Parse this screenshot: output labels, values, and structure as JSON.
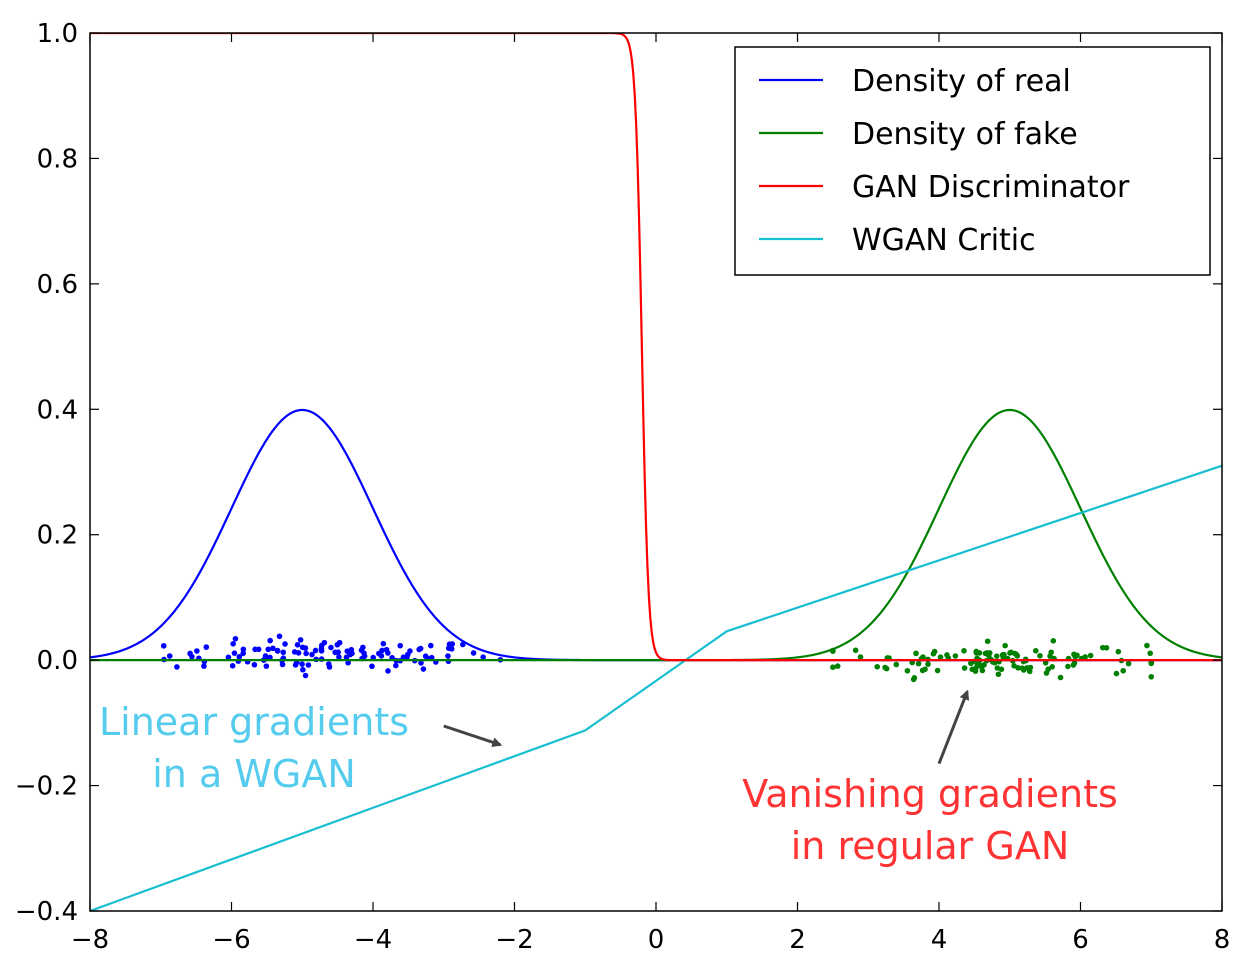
{
  "chart_data": {
    "type": "line",
    "title": "",
    "xlabel": "",
    "ylabel": "",
    "xlim": [
      -8,
      8
    ],
    "ylim": [
      -0.4,
      1.0
    ],
    "x_ticks": [
      -8,
      -6,
      -4,
      -2,
      0,
      2,
      4,
      6,
      8
    ],
    "x_tick_labels": [
      "−8",
      "−6",
      "−4",
      "−2",
      "0",
      "2",
      "4",
      "6",
      "8"
    ],
    "y_ticks": [
      -0.4,
      -0.2,
      0.0,
      0.2,
      0.4,
      0.6,
      0.8,
      1.0
    ],
    "y_tick_labels": [
      "−0.4",
      "−0.2",
      "0.0",
      "0.2",
      "0.4",
      "0.6",
      "0.8",
      "1.0"
    ],
    "grid": false,
    "legend_position": "top-right",
    "series": [
      {
        "name": "Density of real",
        "color": "#0000ff",
        "function": "normal pdf",
        "mean": -5,
        "std": 1,
        "points": [
          [
            -8,
            0.004
          ],
          [
            -7,
            0.054
          ],
          [
            -6.5,
            0.13
          ],
          [
            -6,
            0.242
          ],
          [
            -5.5,
            0.352
          ],
          [
            -5,
            0.399
          ],
          [
            -4.5,
            0.352
          ],
          [
            -4,
            0.242
          ],
          [
            -3.5,
            0.13
          ],
          [
            -3,
            0.054
          ],
          [
            -2,
            0.004
          ],
          [
            -1,
            0.0001
          ],
          [
            8,
            0
          ]
        ]
      },
      {
        "name": "Density of fake",
        "color": "#008000",
        "function": "normal pdf",
        "mean": 5,
        "std": 1,
        "points": [
          [
            -8,
            0
          ],
          [
            1,
            0.0001
          ],
          [
            2,
            0.004
          ],
          [
            3,
            0.054
          ],
          [
            3.5,
            0.13
          ],
          [
            4,
            0.242
          ],
          [
            4.5,
            0.352
          ],
          [
            5,
            0.399
          ],
          [
            5.5,
            0.352
          ],
          [
            6,
            0.242
          ],
          [
            6.5,
            0.13
          ],
          [
            7,
            0.054
          ],
          [
            8,
            0.004
          ]
        ]
      },
      {
        "name": "GAN Discriminator",
        "color": "#ff0000",
        "function": "sigmoid step",
        "points": [
          [
            -8,
            1.0
          ],
          [
            -0.6,
            1.0
          ],
          [
            -0.4,
            0.95
          ],
          [
            -0.3,
            0.8
          ],
          [
            -0.2,
            0.5
          ],
          [
            -0.1,
            0.2
          ],
          [
            0.0,
            0.04
          ],
          [
            0.2,
            0.005
          ],
          [
            0.5,
            0.0
          ],
          [
            8,
            0.0
          ]
        ]
      },
      {
        "name": "WGAN Critic",
        "color": "#17becf",
        "function": "piecewise linear",
        "points": [
          [
            -8,
            -0.4
          ],
          [
            -1,
            -0.112
          ],
          [
            1,
            0.046
          ],
          [
            8,
            0.31
          ]
        ]
      }
    ],
    "scatter": [
      {
        "name": "real samples",
        "color": "#0000ff",
        "x_range": [
          -7.0,
          -2.2
        ],
        "y_range": [
          -0.02,
          0.035
        ],
        "count": 120
      },
      {
        "name": "fake samples",
        "color": "#008000",
        "x_range": [
          2.5,
          7.0
        ],
        "y_range": [
          -0.03,
          0.03
        ],
        "count": 120
      }
    ],
    "annotations": [
      {
        "lines": [
          "Linear gradients",
          "in a WGAN"
        ],
        "color": "#55ccee",
        "arrow_to": [
          -2.2,
          -0.135
        ],
        "arrow_from": [
          -3.0,
          -0.105
        ]
      },
      {
        "lines": [
          "Vanishing gradients",
          "in regular GAN"
        ],
        "color": "#ff3333",
        "arrow_to": [
          4.4,
          -0.05
        ],
        "arrow_from": [
          4.0,
          -0.165
        ]
      }
    ]
  }
}
